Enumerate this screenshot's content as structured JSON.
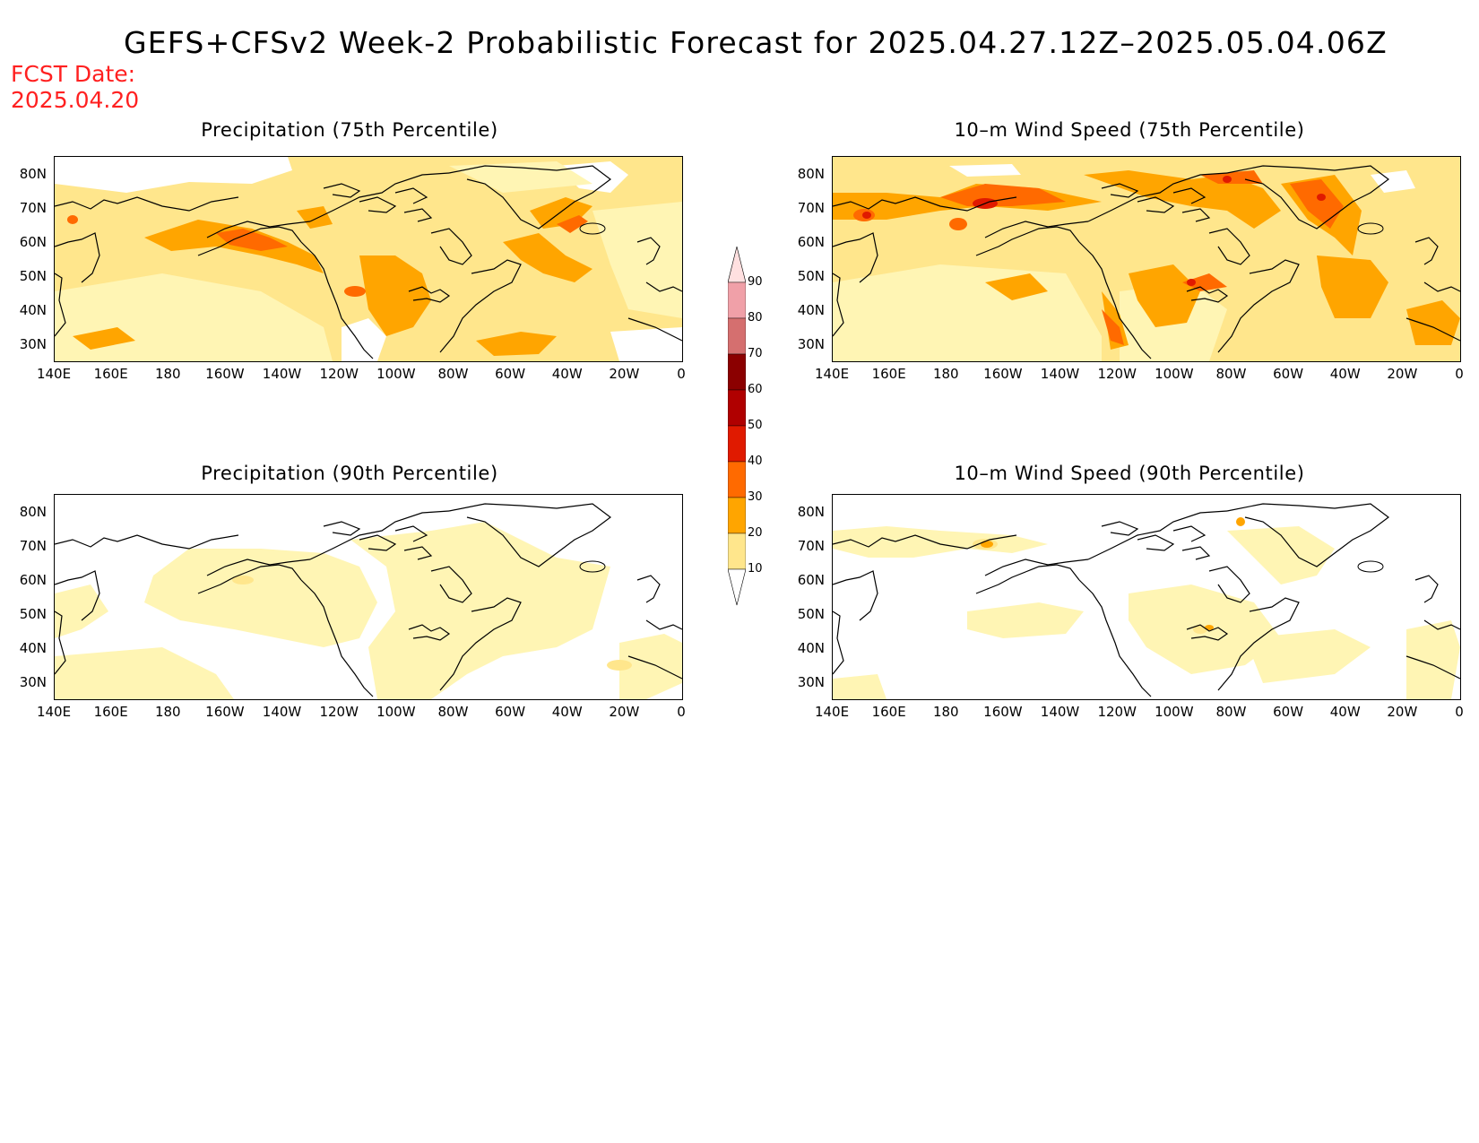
{
  "title": "GEFS+CFSv2 Week-2 Probabilistic Forecast for 2025.04.27.12Z–2025.05.04.06Z",
  "fcst_date": {
    "line1": "FCST Date:",
    "line2": "2025.04.20"
  },
  "panels": [
    {
      "id": "precip75",
      "title": "Precipitation (75th Percentile)"
    },
    {
      "id": "wind75",
      "title": "10–m Wind Speed (75th Percentile)"
    },
    {
      "id": "precip90",
      "title": "Precipitation (90th Percentile)"
    },
    {
      "id": "wind90",
      "title": "10–m Wind Speed (90th Percentile)"
    }
  ],
  "lat_labels": [
    "80N",
    "70N",
    "60N",
    "50N",
    "40N",
    "30N"
  ],
  "lon_labels": [
    "140E",
    "160E",
    "180",
    "160W",
    "140W",
    "120W",
    "100W",
    "80W",
    "60W",
    "40W",
    "20W",
    "0"
  ],
  "colorbar": {
    "levels": [
      "10",
      "20",
      "30",
      "40",
      "50",
      "60",
      "70",
      "80",
      "90"
    ],
    "colors": [
      "#fff5b4",
      "#ffe68c",
      "#ffa500",
      "#ff6a00",
      "#e01a00",
      "#b00000",
      "#8b0000",
      "#d56f6f",
      "#f0a0a8",
      "#ffe0e0"
    ]
  }
}
